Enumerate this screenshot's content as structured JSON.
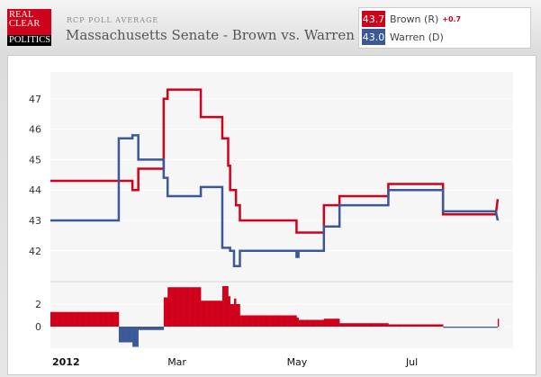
{
  "header": {
    "logo": [
      "REAL",
      "CLEAR",
      "POLITICS"
    ],
    "subtitle": "RCP POLL AVERAGE",
    "title": "Massachusetts Senate - Brown vs. Warren"
  },
  "legend": [
    {
      "value": "43.7",
      "name": "Brown (R)",
      "change": "+0.7",
      "color": "#d0011b"
    },
    {
      "value": "43.0",
      "name": "Warren (D)",
      "color": "#3b5998"
    }
  ],
  "chart_data": {
    "type": "line",
    "title": "Massachusetts Senate - Brown vs. Warren",
    "x_unit": "days since 2012-01-01",
    "x_ticks": [
      {
        "day": 0,
        "label": "2012"
      },
      {
        "day": 60,
        "label": "Mar"
      },
      {
        "day": 121,
        "label": "May"
      },
      {
        "day": 182,
        "label": "Jul"
      }
    ],
    "y_ticks": [
      42,
      43,
      44,
      45,
      46,
      47
    ],
    "ylim": [
      41.2,
      48
    ],
    "spread_ticks": [
      0,
      2
    ],
    "spread_ylim": [
      -2,
      4
    ],
    "series": [
      {
        "name": "Brown (R)",
        "color": "#d0011b",
        "points": [
          [
            0,
            44.3
          ],
          [
            42,
            44.3
          ],
          [
            42,
            44.0
          ],
          [
            45,
            44.0
          ],
          [
            45,
            44.7
          ],
          [
            58,
            44.7
          ],
          [
            58,
            47.0
          ],
          [
            60,
            47.0
          ],
          [
            60,
            47.3
          ],
          [
            77,
            47.3
          ],
          [
            77,
            46.4
          ],
          [
            88,
            46.4
          ],
          [
            88,
            45.7
          ],
          [
            91,
            45.7
          ],
          [
            91,
            44.8
          ],
          [
            92,
            44.8
          ],
          [
            92,
            44.0
          ],
          [
            95,
            44.0
          ],
          [
            95,
            43.5
          ],
          [
            97,
            43.5
          ],
          [
            97,
            43.0
          ],
          [
            126,
            43.0
          ],
          [
            126,
            42.6
          ],
          [
            140,
            42.6
          ],
          [
            140,
            43.5
          ],
          [
            148,
            43.5
          ],
          [
            148,
            43.8
          ],
          [
            173,
            43.8
          ],
          [
            173,
            44.2
          ],
          [
            201,
            44.2
          ],
          [
            201,
            43.2
          ],
          [
            228,
            43.2
          ],
          [
            229,
            43.7
          ]
        ]
      },
      {
        "name": "Warren (D)",
        "color": "#3b5998",
        "points": [
          [
            0,
            43.0
          ],
          [
            35,
            43.0
          ],
          [
            35,
            45.7
          ],
          [
            42,
            45.7
          ],
          [
            42,
            45.8
          ],
          [
            45,
            45.8
          ],
          [
            45,
            45.0
          ],
          [
            58,
            45.0
          ],
          [
            58,
            44.4
          ],
          [
            60,
            44.4
          ],
          [
            60,
            43.8
          ],
          [
            77,
            43.8
          ],
          [
            77,
            44.1
          ],
          [
            88,
            44.1
          ],
          [
            88,
            42.1
          ],
          [
            92,
            42.1
          ],
          [
            92,
            42.0
          ],
          [
            94,
            42.0
          ],
          [
            94,
            41.5
          ],
          [
            97,
            41.5
          ],
          [
            97,
            42.0
          ],
          [
            126,
            42.0
          ],
          [
            126,
            41.8
          ],
          [
            127,
            41.8
          ],
          [
            127,
            42.0
          ],
          [
            140,
            42.0
          ],
          [
            140,
            42.8
          ],
          [
            148,
            42.8
          ],
          [
            148,
            43.5
          ],
          [
            173,
            43.5
          ],
          [
            173,
            44.0
          ],
          [
            201,
            44.0
          ],
          [
            201,
            43.3
          ],
          [
            228,
            43.3
          ],
          [
            229,
            43.0
          ]
        ]
      }
    ]
  }
}
